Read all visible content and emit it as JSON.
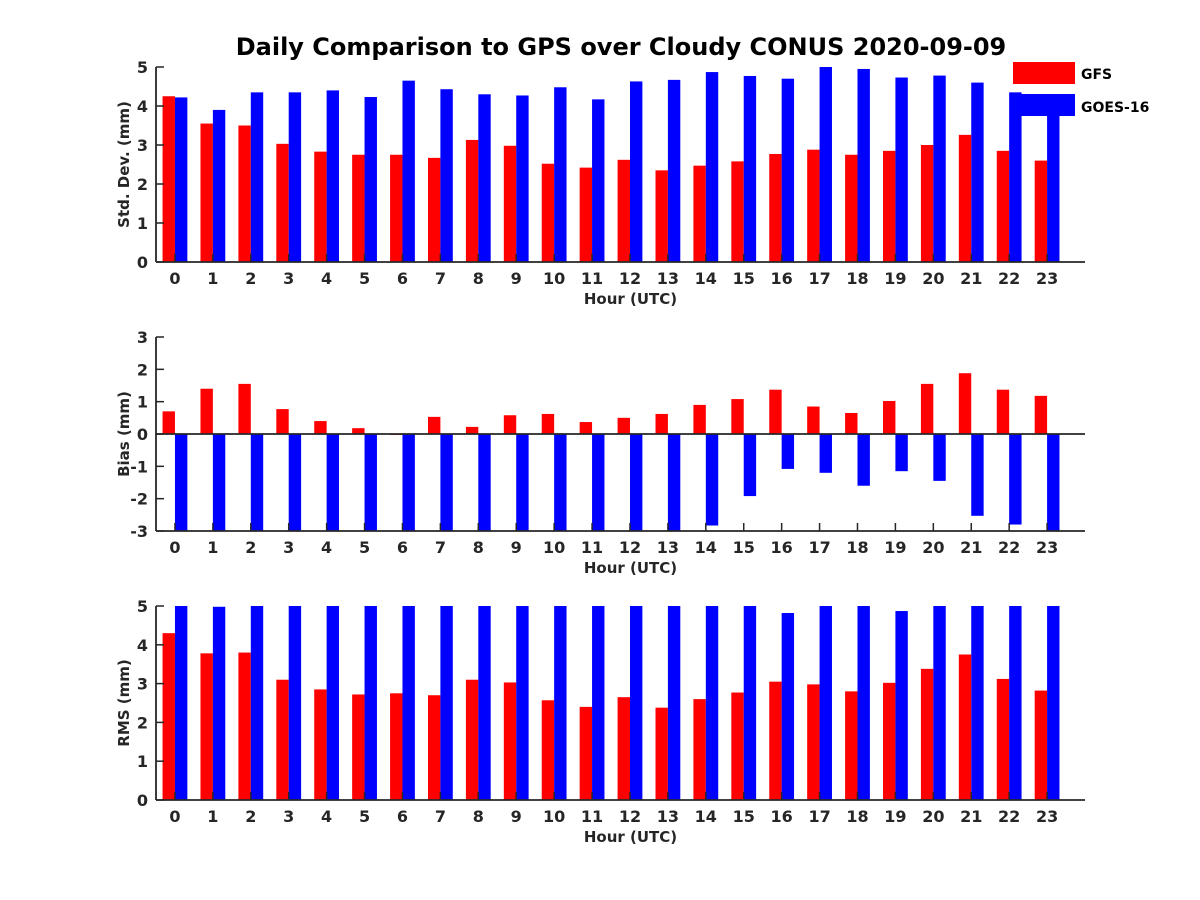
{
  "title": "Daily Comparison to GPS over Cloudy CONUS 2020-09-09",
  "colors": {
    "GFS": "#ff0000",
    "GOES-16": "#0000ff"
  },
  "legend": {
    "placement": "top-right",
    "entries": [
      "GFS",
      "GOES-16"
    ]
  },
  "chart_data": [
    {
      "type": "bar",
      "categories": [
        "0",
        "1",
        "2",
        "3",
        "4",
        "5",
        "6",
        "7",
        "8",
        "9",
        "10",
        "11",
        "12",
        "13",
        "14",
        "15",
        "16",
        "17",
        "18",
        "19",
        "20",
        "21",
        "22",
        "23"
      ],
      "xlabel": "Hour (UTC)",
      "ylabel": "Std. Dev. (mm)",
      "ylim": [
        0,
        5
      ],
      "yticks": [
        "0",
        "1",
        "2",
        "3",
        "4",
        "5"
      ],
      "series": [
        {
          "name": "GFS",
          "values": [
            4.25,
            3.55,
            3.5,
            3.03,
            2.83,
            2.75,
            2.75,
            2.67,
            3.13,
            2.98,
            2.52,
            2.42,
            2.62,
            2.35,
            2.47,
            2.58,
            2.77,
            2.88,
            2.75,
            2.85,
            3.0,
            3.26,
            2.85,
            2.6
          ]
        },
        {
          "name": "GOES-16",
          "values": [
            4.22,
            3.9,
            4.35,
            4.35,
            4.4,
            4.23,
            4.65,
            4.43,
            4.3,
            4.27,
            4.48,
            4.17,
            4.63,
            4.67,
            4.87,
            4.77,
            4.7,
            5.0,
            4.95,
            4.73,
            4.78,
            4.6,
            4.35,
            3.9
          ]
        }
      ]
    },
    {
      "type": "bar",
      "categories": [
        "0",
        "1",
        "2",
        "3",
        "4",
        "5",
        "6",
        "7",
        "8",
        "9",
        "10",
        "11",
        "12",
        "13",
        "14",
        "15",
        "16",
        "17",
        "18",
        "19",
        "20",
        "21",
        "22",
        "23"
      ],
      "xlabel": "Hour (UTC)",
      "ylabel": "Bias (mm)",
      "ylim": [
        -3,
        3
      ],
      "yticks": [
        "-3",
        "-2",
        "-1",
        "0",
        "1",
        "2",
        "3"
      ],
      "series": [
        {
          "name": "GFS",
          "values": [
            0.7,
            1.4,
            1.55,
            0.77,
            0.4,
            0.18,
            -0.03,
            0.53,
            0.22,
            0.58,
            0.62,
            0.37,
            0.5,
            0.62,
            0.9,
            1.08,
            1.37,
            0.85,
            0.65,
            1.02,
            1.55,
            1.88,
            1.37,
            1.18
          ]
        },
        {
          "name": "GOES-16",
          "values": [
            -3.0,
            -3.0,
            -3.0,
            -3.0,
            -3.0,
            -3.0,
            -3.0,
            -3.0,
            -3.0,
            -3.0,
            -3.0,
            -3.0,
            -3.0,
            -3.0,
            -2.83,
            -1.92,
            -1.08,
            -1.2,
            -1.6,
            -1.15,
            -1.45,
            -2.53,
            -2.8,
            -3.0
          ]
        }
      ]
    },
    {
      "type": "bar",
      "categories": [
        "0",
        "1",
        "2",
        "3",
        "4",
        "5",
        "6",
        "7",
        "8",
        "9",
        "10",
        "11",
        "12",
        "13",
        "14",
        "15",
        "16",
        "17",
        "18",
        "19",
        "20",
        "21",
        "22",
        "23"
      ],
      "xlabel": "Hour (UTC)",
      "ylabel": "RMS (mm)",
      "ylim": [
        0,
        5
      ],
      "yticks": [
        "0",
        "1",
        "2",
        "3",
        "4",
        "5"
      ],
      "series": [
        {
          "name": "GFS",
          "values": [
            4.3,
            3.78,
            3.8,
            3.1,
            2.85,
            2.72,
            2.75,
            2.7,
            3.1,
            3.03,
            2.57,
            2.4,
            2.65,
            2.38,
            2.6,
            2.77,
            3.05,
            2.98,
            2.8,
            3.02,
            3.38,
            3.75,
            3.12,
            2.82
          ]
        },
        {
          "name": "GOES-16",
          "values": [
            5.0,
            4.98,
            5.0,
            5.0,
            5.0,
            5.0,
            5.0,
            5.0,
            5.0,
            5.0,
            5.0,
            5.0,
            5.0,
            5.0,
            5.0,
            5.0,
            4.82,
            5.0,
            5.0,
            4.87,
            5.0,
            5.0,
            5.0,
            5.0
          ]
        }
      ]
    }
  ]
}
